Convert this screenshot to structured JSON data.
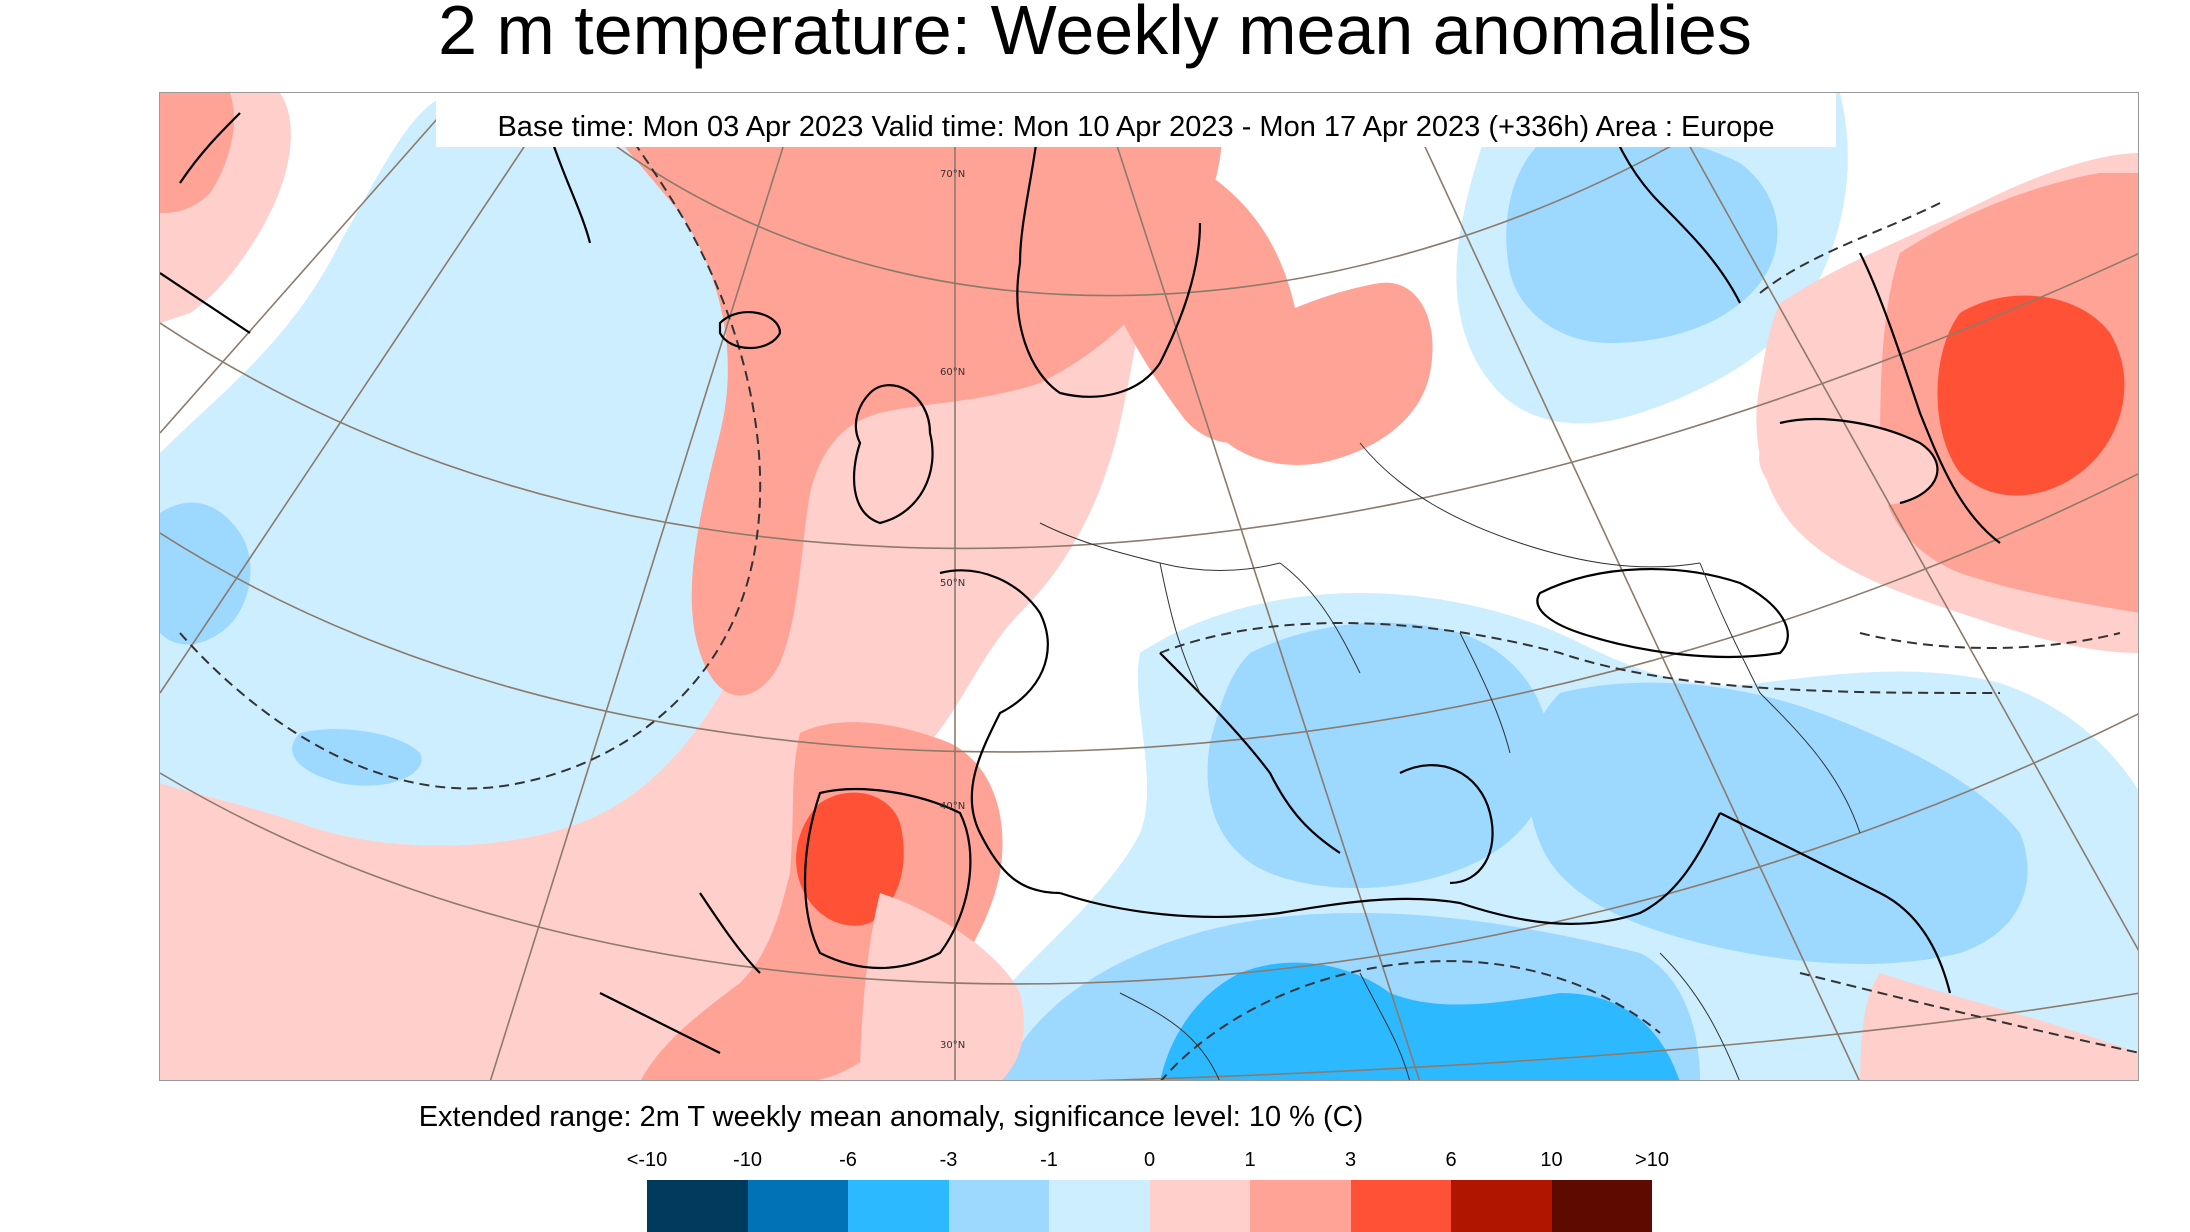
{
  "title": "2 m temperature: Weekly mean anomalies",
  "subtitle": "Base time: Mon 03 Apr 2023 Valid time: Mon 10 Apr 2023 - Mon 17 Apr 2023 (+336h) Area : Europe",
  "map": {
    "grid_labels": [
      "70°N",
      "60°N",
      "50°N",
      "40°N",
      "30°N"
    ],
    "colors": {
      "anom_lt_m10": "#003a5c",
      "anom_m10_m6": "#0072b5",
      "anom_m6_m3": "#2db9ff",
      "anom_m3_m1": "#9cd8ff",
      "anom_m1_0": "#cdeeff",
      "anom_0_1": "#ffffff",
      "anom_1_3": "#ffcfcb",
      "anom_3_6": "#ffa397",
      "anom_6_10": "#ff5135",
      "anom_10_gt": "#b01500",
      "anom_gt_10": "#5e0a00"
    }
  },
  "legend": {
    "title": "Extended range: 2m T weekly mean anomaly, significance level: 10 % (C)",
    "ticks": [
      "<-10",
      "-10",
      "-6",
      "-3",
      "-1",
      "0",
      "1",
      "3",
      "6",
      "10",
      ">10"
    ],
    "colors": [
      "#003a5c",
      "#0072b5",
      "#2db9ff",
      "#9cd8ff",
      "#cdeeff",
      "#ffcfcb",
      "#ffa397",
      "#ff5135",
      "#b01500",
      "#5e0a00"
    ]
  }
}
